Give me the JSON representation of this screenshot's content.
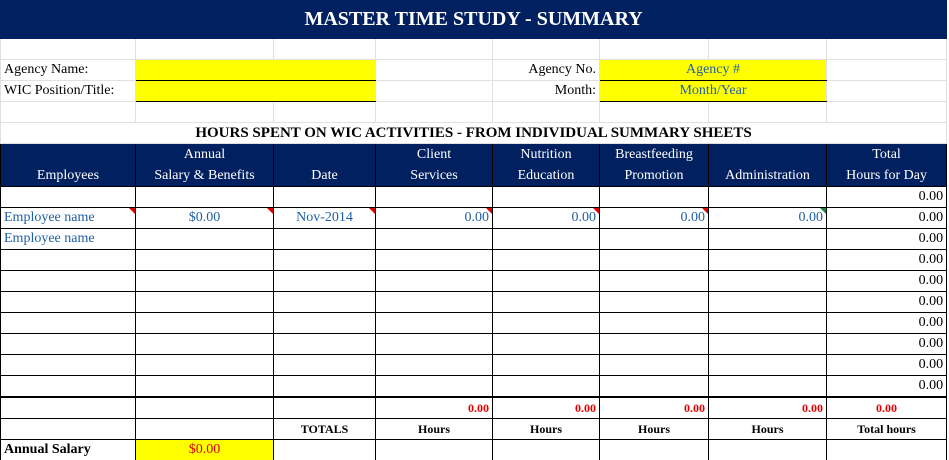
{
  "title": "MASTER TIME STUDY - SUMMARY",
  "agency_name_label": "Agency Name:",
  "agency_name_value": "",
  "wic_position_label": "WIC Position/Title:",
  "wic_position_value": "",
  "agency_no_label": "Agency No.",
  "agency_no_value": "Agency #",
  "month_label": "Month:",
  "month_value": "Month/Year",
  "section_heading": "HOURS SPENT ON WIC ACTIVITIES - FROM INDIVIDUAL SUMMARY SHEETS",
  "columns": [
    {
      "l1": "",
      "l2": "Employees"
    },
    {
      "l1": "Annual",
      "l2": "Salary & Benefits"
    },
    {
      "l1": "",
      "l2": "Date"
    },
    {
      "l1": "Client",
      "l2": "Services"
    },
    {
      "l1": "Nutrition",
      "l2": "Education"
    },
    {
      "l1": "Breastfeeding",
      "l2": "Promotion"
    },
    {
      "l1": "",
      "l2": "Administration"
    },
    {
      "l1": "Total",
      "l2": "Hours for Day"
    }
  ],
  "rows": [
    [
      "",
      "",
      "",
      "",
      "",
      "",
      "",
      "0.00"
    ],
    [
      "Employee name",
      "$0.00",
      "Nov-2014",
      "0.00",
      "0.00",
      "0.00",
      "0.00",
      "0.00"
    ],
    [
      "Employee name",
      "",
      "",
      "",
      "",
      "",
      "",
      "0.00"
    ],
    [
      "",
      "",
      "",
      "",
      "",
      "",
      "",
      "0.00"
    ],
    [
      "",
      "",
      "",
      "",
      "",
      "",
      "",
      "0.00"
    ],
    [
      "",
      "",
      "",
      "",
      "",
      "",
      "",
      "0.00"
    ],
    [
      "",
      "",
      "",
      "",
      "",
      "",
      "",
      "0.00"
    ],
    [
      "",
      "",
      "",
      "",
      "",
      "",
      "",
      "0.00"
    ],
    [
      "",
      "",
      "",
      "",
      "",
      "",
      "",
      "0.00"
    ],
    [
      "",
      "",
      "",
      "",
      "",
      "",
      "",
      "0.00"
    ]
  ],
  "totals": [
    "0.00",
    "0.00",
    "0.00",
    "0.00",
    "0.00"
  ],
  "totals_label": "TOTALS",
  "units": [
    "Hours",
    "Hours",
    "Hours",
    "Hours",
    "Total hours"
  ],
  "annual_salary_label": "Annual Salary",
  "annual_salary_value": "$0.00"
}
